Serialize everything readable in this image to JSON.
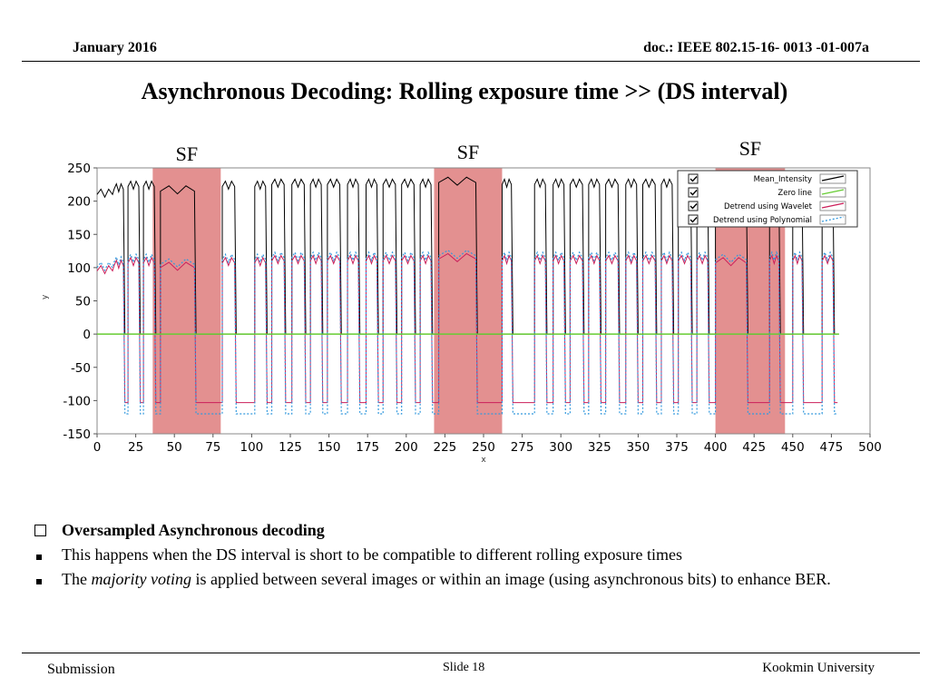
{
  "header": {
    "date": "January 2016",
    "doc": "doc.: IEEE 802.15-16- 0013 -01-007a"
  },
  "title": "Asynchronous Decoding: Rolling exposure time >> (DS interval)",
  "sf_labels": [
    "SF",
    "SF",
    "SF"
  ],
  "chart_data": {
    "type": "line",
    "title": "",
    "xlabel": "x",
    "ylabel": "y",
    "xlim": [
      0,
      500
    ],
    "ylim": [
      -150,
      250
    ],
    "x_ticks": [
      "0",
      "25",
      "50",
      "75",
      "100",
      "125",
      "150",
      "175",
      "200",
      "225",
      "250",
      "275",
      "300",
      "325",
      "350",
      "375",
      "400",
      "425",
      "450",
      "475",
      "500"
    ],
    "y_ticks": [
      "250",
      "200",
      "150",
      "100",
      "50",
      "0",
      "-50",
      "-100",
      "-150"
    ],
    "grid": false,
    "legend": {
      "placement": "top-right",
      "entries": [
        "Mean_Intensity",
        "Zero line",
        "Detrend using Wavelet",
        "Detrend using Polynomial"
      ]
    },
    "highlight_regions": [
      [
        36,
        80
      ],
      [
        218,
        262
      ],
      [
        400,
        445
      ]
    ],
    "colors": {
      "mean": "#000000",
      "zero": "#66cc33",
      "wavelet": "#cc1f5a",
      "poly": "#3399dd",
      "highlight": "#d96b6b"
    },
    "series": [
      {
        "name": "Mean_Intensity",
        "segments": [
          {
            "high": 1,
            "x0": 0,
            "x1": 10,
            "y": 210
          },
          {
            "high": 1,
            "x0": 11,
            "x1": 17,
            "y": 218
          },
          {
            "high": 0,
            "x0": 18,
            "x1": 20
          },
          {
            "high": 1,
            "x0": 20,
            "x1": 27,
            "y": 222
          },
          {
            "high": 0,
            "x0": 28,
            "x1": 30
          },
          {
            "high": 1,
            "x0": 30,
            "x1": 37,
            "y": 222
          },
          {
            "high": 0,
            "x0": 38,
            "x1": 41
          },
          {
            "high": 1,
            "x0": 41,
            "x1": 63,
            "y": 215
          },
          {
            "high": 0,
            "x0": 64,
            "x1": 81
          },
          {
            "high": 1,
            "x0": 81,
            "x1": 89,
            "y": 222
          },
          {
            "high": 0,
            "x0": 90,
            "x1": 102
          },
          {
            "high": 1,
            "x0": 102,
            "x1": 109,
            "y": 222
          },
          {
            "high": 0,
            "x0": 110,
            "x1": 113
          },
          {
            "high": 1,
            "x0": 113,
            "x1": 121,
            "y": 225
          },
          {
            "high": 0,
            "x0": 122,
            "x1": 126
          },
          {
            "high": 1,
            "x0": 126,
            "x1": 134,
            "y": 225
          },
          {
            "high": 0,
            "x0": 135,
            "x1": 138
          },
          {
            "high": 1,
            "x0": 138,
            "x1": 145,
            "y": 225
          },
          {
            "high": 0,
            "x0": 146,
            "x1": 149
          },
          {
            "high": 1,
            "x0": 149,
            "x1": 157,
            "y": 225
          },
          {
            "high": 0,
            "x0": 158,
            "x1": 162
          },
          {
            "high": 1,
            "x0": 162,
            "x1": 169,
            "y": 225
          },
          {
            "high": 0,
            "x0": 170,
            "x1": 174
          },
          {
            "high": 1,
            "x0": 174,
            "x1": 181,
            "y": 225
          },
          {
            "high": 0,
            "x0": 182,
            "x1": 185
          },
          {
            "high": 1,
            "x0": 185,
            "x1": 193,
            "y": 225
          },
          {
            "high": 0,
            "x0": 194,
            "x1": 197
          },
          {
            "high": 1,
            "x0": 197,
            "x1": 205,
            "y": 225
          },
          {
            "high": 0,
            "x0": 206,
            "x1": 209
          },
          {
            "high": 1,
            "x0": 209,
            "x1": 216,
            "y": 225
          },
          {
            "high": 0,
            "x0": 217,
            "x1": 221
          },
          {
            "high": 1,
            "x0": 221,
            "x1": 245,
            "y": 228
          },
          {
            "high": 0,
            "x0": 246,
            "x1": 262
          },
          {
            "high": 1,
            "x0": 262,
            "x1": 268,
            "y": 225
          },
          {
            "high": 0,
            "x0": 269,
            "x1": 283
          },
          {
            "high": 1,
            "x0": 283,
            "x1": 290,
            "y": 225
          },
          {
            "high": 0,
            "x0": 291,
            "x1": 295
          },
          {
            "high": 1,
            "x0": 295,
            "x1": 302,
            "y": 225
          },
          {
            "high": 0,
            "x0": 303,
            "x1": 306
          },
          {
            "high": 1,
            "x0": 306,
            "x1": 314,
            "y": 225
          },
          {
            "high": 0,
            "x0": 315,
            "x1": 318
          },
          {
            "high": 1,
            "x0": 318,
            "x1": 325,
            "y": 225
          },
          {
            "high": 0,
            "x0": 326,
            "x1": 329
          },
          {
            "high": 1,
            "x0": 329,
            "x1": 337,
            "y": 225
          },
          {
            "high": 0,
            "x0": 338,
            "x1": 342
          },
          {
            "high": 1,
            "x0": 342,
            "x1": 349,
            "y": 225
          },
          {
            "high": 0,
            "x0": 350,
            "x1": 353
          },
          {
            "high": 1,
            "x0": 353,
            "x1": 361,
            "y": 225
          },
          {
            "high": 0,
            "x0": 362,
            "x1": 365
          },
          {
            "high": 1,
            "x0": 365,
            "x1": 372,
            "y": 225
          },
          {
            "high": 0,
            "x0": 373,
            "x1": 376
          },
          {
            "high": 1,
            "x0": 376,
            "x1": 384,
            "y": 225
          },
          {
            "high": 0,
            "x0": 385,
            "x1": 388
          },
          {
            "high": 1,
            "x0": 388,
            "x1": 395,
            "y": 225
          },
          {
            "high": 0,
            "x0": 396,
            "x1": 400
          },
          {
            "high": 1,
            "x0": 400,
            "x1": 420,
            "y": 222
          },
          {
            "high": 0,
            "x0": 421,
            "x1": 435
          },
          {
            "high": 1,
            "x0": 435,
            "x1": 441,
            "y": 225
          },
          {
            "high": 0,
            "x0": 442,
            "x1": 450
          },
          {
            "high": 1,
            "x0": 450,
            "x1": 456,
            "y": 225
          },
          {
            "high": 0,
            "x0": 457,
            "x1": 469
          },
          {
            "high": 1,
            "x0": 469,
            "x1": 476,
            "y": 225
          },
          {
            "high": 0,
            "x0": 477,
            "x1": 479
          }
        ]
      },
      {
        "name": "Zero line",
        "points": [
          [
            0,
            0
          ],
          [
            480,
            0
          ]
        ]
      },
      {
        "name": "Detrend using Wavelet",
        "high_y": 108,
        "low_y": -103
      },
      {
        "name": "Detrend using Polynomial",
        "high_y": 114,
        "low_y": -120
      }
    ]
  },
  "bullets": [
    {
      "type": "box",
      "bold": "Oversampled Asynchronous decoding"
    },
    {
      "type": "square",
      "text": "This happens when the DS interval is short to be compatible to different rolling exposure times"
    },
    {
      "type": "square",
      "pre": "The ",
      "em": "majority voting",
      "post": " is applied between several images or within an image (using asynchronous bits) to enhance BER."
    }
  ],
  "footer": {
    "left": "Submission",
    "center": "Slide 18",
    "right": "Kookmin University"
  }
}
